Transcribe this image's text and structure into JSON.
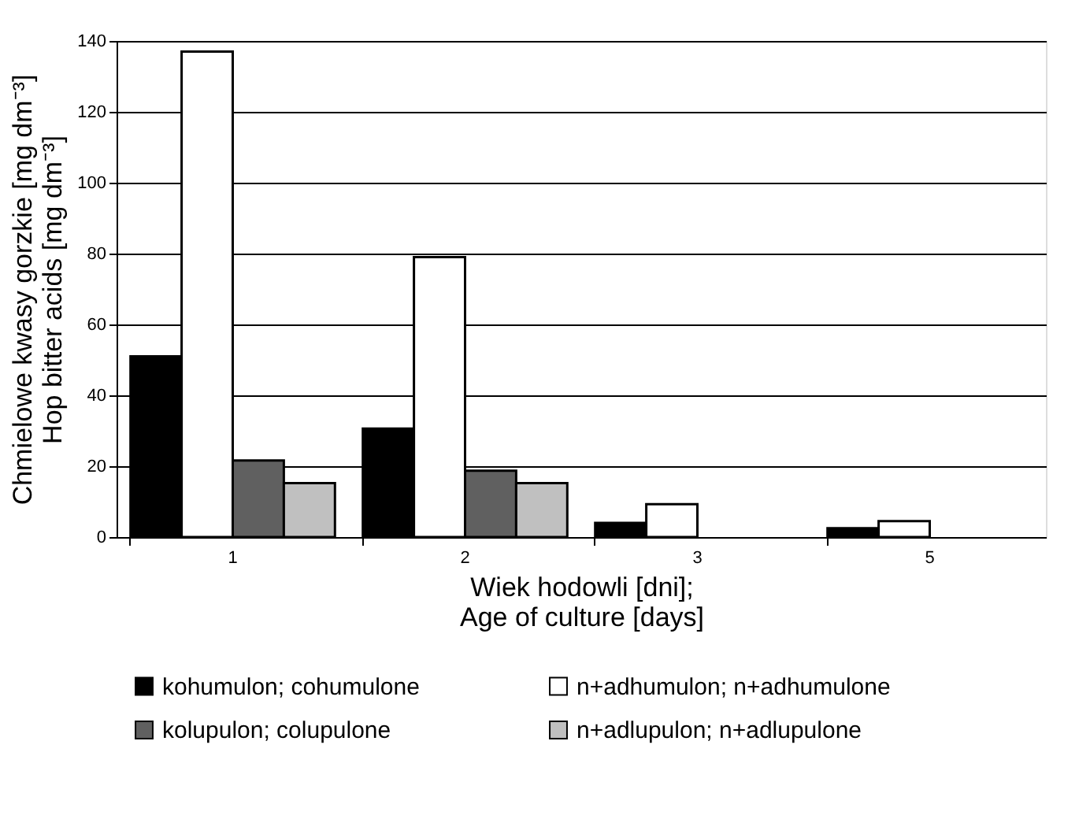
{
  "chart_data": {
    "type": "bar",
    "xlabel": "Wiek hodowli [dni];\nAge of culture [days]",
    "ylabel": "Chmielowe kwasy gorzkie [mg dm⁻³]\nHop bitter acids [mg dm⁻³]",
    "categories": [
      "1",
      "2",
      "3",
      "5"
    ],
    "series": [
      {
        "name": "kohumulon; cohumulone",
        "color": "#000000",
        "values": [
          51,
          30.6,
          4,
          2.5
        ]
      },
      {
        "name": "n+adhumulon; n+adhumulone",
        "color": "#ffffff",
        "values": [
          137,
          79,
          9.3,
          4.5
        ]
      },
      {
        "name": "kolupulon; colupulone",
        "color": "#606060",
        "values": [
          21.6,
          18.7,
          null,
          null
        ]
      },
      {
        "name": "n+adlupulon; n+adlupulone",
        "color": "#c0c0c0",
        "values": [
          15.2,
          15.2,
          null,
          null
        ]
      }
    ],
    "ylim": [
      0,
      140
    ],
    "yticks": [
      0,
      20,
      40,
      60,
      80,
      100,
      120,
      140
    ],
    "grid": "y",
    "legend": "bottom"
  }
}
